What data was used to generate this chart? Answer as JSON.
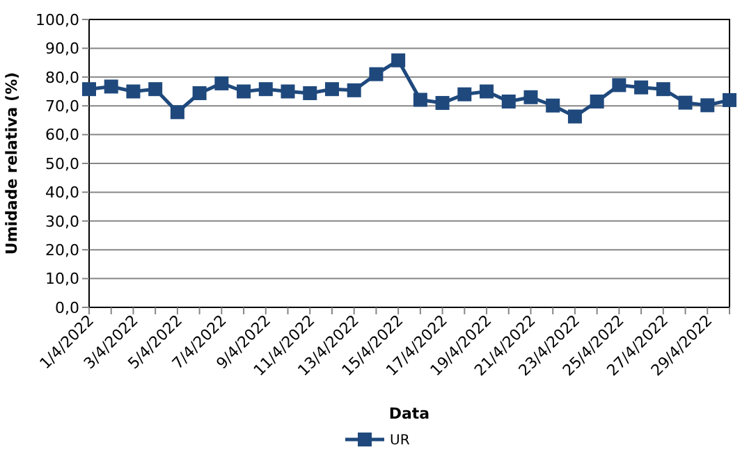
{
  "chart_data": {
    "type": "line",
    "xlabel": "Data",
    "ylabel": "Umidade relativa (%)",
    "categories": [
      "1/4/2022",
      null,
      "3/4/2022",
      null,
      "5/4/2022",
      null,
      "7/4/2022",
      null,
      "9/4/2022",
      null,
      "11/4/2022",
      null,
      "13/4/2022",
      null,
      "15/4/2022",
      null,
      "17/4/2022",
      null,
      "19/4/2022",
      null,
      "21/4/2022",
      null,
      "23/4/2022",
      null,
      "25/4/2022",
      null,
      "27/4/2022",
      null,
      "29/4/2022",
      null
    ],
    "series": [
      {
        "name": "UR",
        "color": "#1f497d",
        "values": [
          75.8,
          76.7,
          75.0,
          75.8,
          67.8,
          74.4,
          77.8,
          75.0,
          75.8,
          75.0,
          74.4,
          75.8,
          75.4,
          81.0,
          85.8,
          72.1,
          71.0,
          74.0,
          75.0,
          71.5,
          73.0,
          70.1,
          66.3,
          71.5,
          77.2,
          76.4,
          75.8,
          71.1,
          70.2,
          72.0
        ]
      }
    ],
    "ylim": [
      0,
      100
    ],
    "yticks": [
      {
        "value": 0,
        "label": "0,0"
      },
      {
        "value": 10,
        "label": "10,0"
      },
      {
        "value": 20,
        "label": "20,0"
      },
      {
        "value": 30,
        "label": "30,0"
      },
      {
        "value": 40,
        "label": "40,0"
      },
      {
        "value": 50,
        "label": "50,0"
      },
      {
        "value": 60,
        "label": "60,0"
      },
      {
        "value": 70,
        "label": "70,0"
      },
      {
        "value": 80,
        "label": "80,0"
      },
      {
        "value": 90,
        "label": "90,0"
      },
      {
        "value": 100,
        "label": "100,0"
      }
    ],
    "grid": "y",
    "legend": "bottom",
    "marker": "square",
    "line_style": "solid"
  }
}
